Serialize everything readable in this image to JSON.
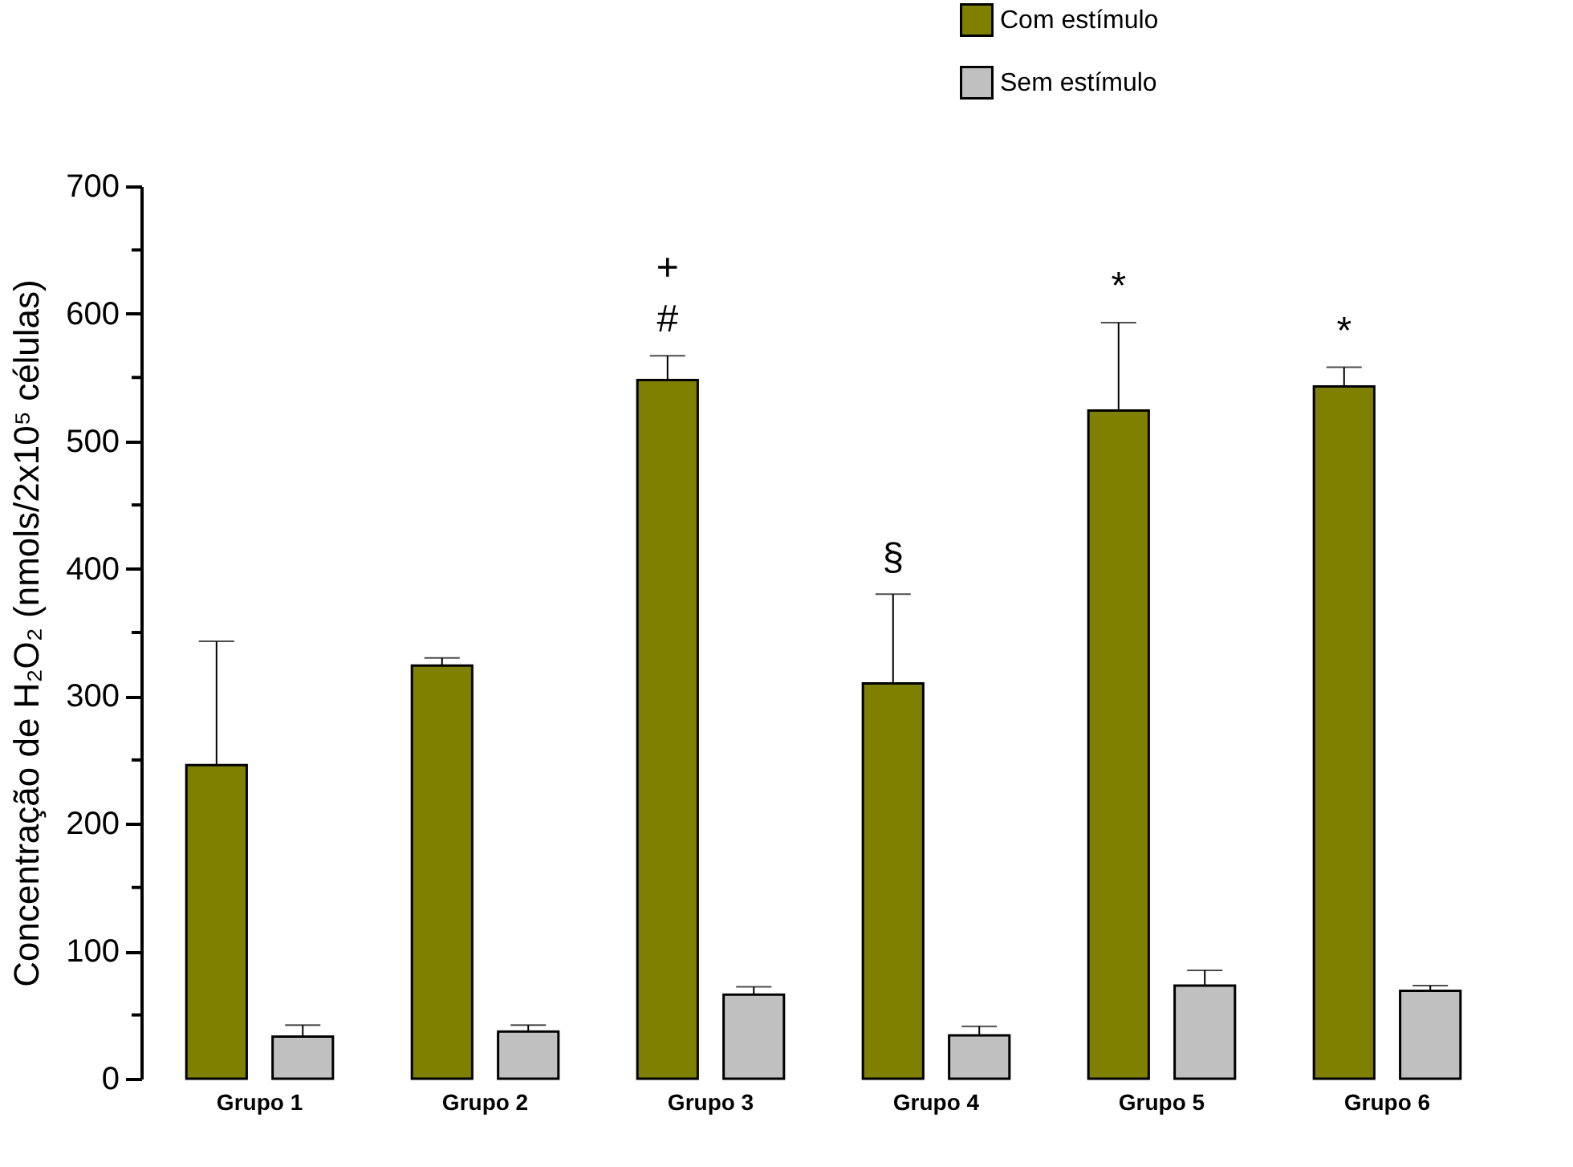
{
  "chart_data": {
    "type": "bar",
    "ylabel": "Concentração de H₂O₂ (nmols/2x10⁵ células)",
    "categories": [
      "Grupo 1",
      "Grupo 2",
      "Grupo 3",
      "Grupo 4",
      "Grupo 5",
      "Grupo 6"
    ],
    "series": [
      {
        "name": "Com estímulo",
        "color": "#808000",
        "values": [
          246,
          324,
          548,
          310,
          524,
          543
        ],
        "errors": [
          [
            246,
            343
          ],
          [
            324,
            330
          ],
          [
            548,
            567
          ],
          [
            310,
            380
          ],
          [
            524,
            593
          ],
          [
            543,
            558
          ]
        ]
      },
      {
        "name": "Sem estímulo",
        "color": "#c0c0c0",
        "values": [
          33,
          37,
          66,
          34,
          73,
          69
        ],
        "errors": [
          [
            33,
            42
          ],
          [
            37,
            42
          ],
          [
            66,
            72
          ],
          [
            34,
            41
          ],
          [
            73,
            85
          ],
          [
            69,
            73
          ]
        ]
      }
    ],
    "ylim": [
      0,
      700
    ],
    "yticks": [
      0,
      {
        "value": 50,
        "label": null
      },
      100,
      {
        "value": 150,
        "label": null
      },
      200,
      {
        "value": 250,
        "label": null
      },
      300,
      {
        "value": 350,
        "label": null
      },
      400,
      {
        "value": 450,
        "label": null
      },
      500,
      {
        "value": 550,
        "label": null
      },
      600,
      {
        "value": 650,
        "label": null
      },
      700
    ],
    "annotations": [
      "#",
      "+",
      "§",
      "*",
      "*"
    ],
    "grid": false,
    "legend": "top right"
  }
}
